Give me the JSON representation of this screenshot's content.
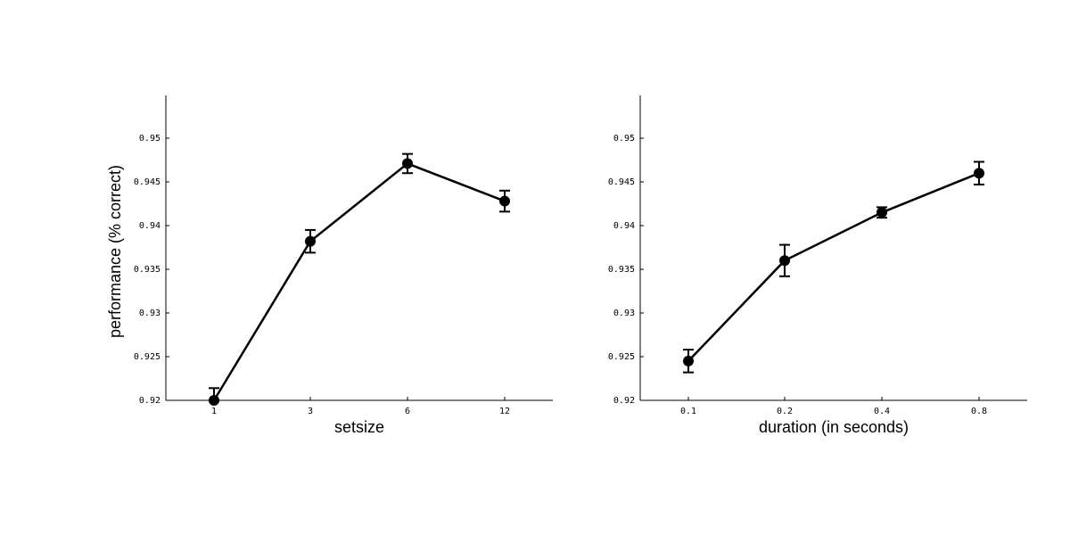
{
  "chart_data": [
    {
      "type": "line",
      "title": "",
      "xlabel": "setsize",
      "ylabel": "performance (% correct)",
      "categories": [
        "1",
        "3",
        "6",
        "12"
      ],
      "values": [
        0.92,
        0.9382,
        0.9471,
        0.9428
      ],
      "error": [
        0.0014,
        0.0013,
        0.0011,
        0.0012
      ],
      "ylim": [
        0.92,
        0.955
      ],
      "yticks": [
        "0.92",
        "0.925",
        "0.93",
        "0.935",
        "0.94",
        "0.945",
        "0.95"
      ],
      "grid": false
    },
    {
      "type": "line",
      "title": "",
      "xlabel": "duration (in seconds)",
      "ylabel": "",
      "categories": [
        "0.1",
        "0.2",
        "0.4",
        "0.8"
      ],
      "values": [
        0.9245,
        0.936,
        0.9415,
        0.946
      ],
      "error": [
        0.0013,
        0.0018,
        0.0006,
        0.0013
      ],
      "ylim": [
        0.92,
        0.955
      ],
      "yticks": [
        "0.92",
        "0.925",
        "0.93",
        "0.935",
        "0.94",
        "0.945",
        "0.95"
      ],
      "grid": false
    }
  ]
}
